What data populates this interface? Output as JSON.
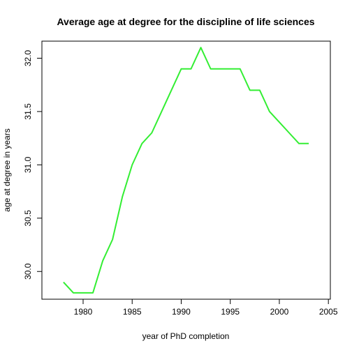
{
  "chart_data": {
    "type": "line",
    "title": "Average age at degree for the discipline of life sciences",
    "xlabel": "year of PhD completion",
    "ylabel": "age at degree in years",
    "xlim": [
      1975.8,
      2005.2
    ],
    "ylim": [
      29.74,
      32.16
    ],
    "xticks": [
      1980,
      1985,
      1990,
      1995,
      2000,
      2005
    ],
    "yticks": [
      30.0,
      30.5,
      31.0,
      31.5,
      32.0
    ],
    "xtick_labels": [
      "1980",
      "1985",
      "1990",
      "1995",
      "2000",
      "2005"
    ],
    "ytick_labels": [
      "30.0",
      "30.5",
      "31.0",
      "31.5",
      "32.0"
    ],
    "grid": false,
    "series": [
      {
        "color": "#33ee33",
        "x": [
          1978,
          1979,
          1980,
          1981,
          1982,
          1983,
          1984,
          1985,
          1986,
          1987,
          1988,
          1989,
          1990,
          1991,
          1992,
          1993,
          1994,
          1995,
          1996,
          1997,
          1998,
          1999,
          2000,
          2001,
          2002,
          2003
        ],
        "y": [
          29.9,
          29.8,
          29.8,
          29.8,
          30.1,
          30.3,
          30.7,
          31.0,
          31.2,
          31.3,
          31.5,
          31.7,
          31.9,
          31.9,
          32.1,
          31.9,
          31.9,
          31.9,
          31.9,
          31.7,
          31.7,
          31.5,
          31.4,
          31.3,
          31.2,
          31.2
        ]
      }
    ]
  }
}
